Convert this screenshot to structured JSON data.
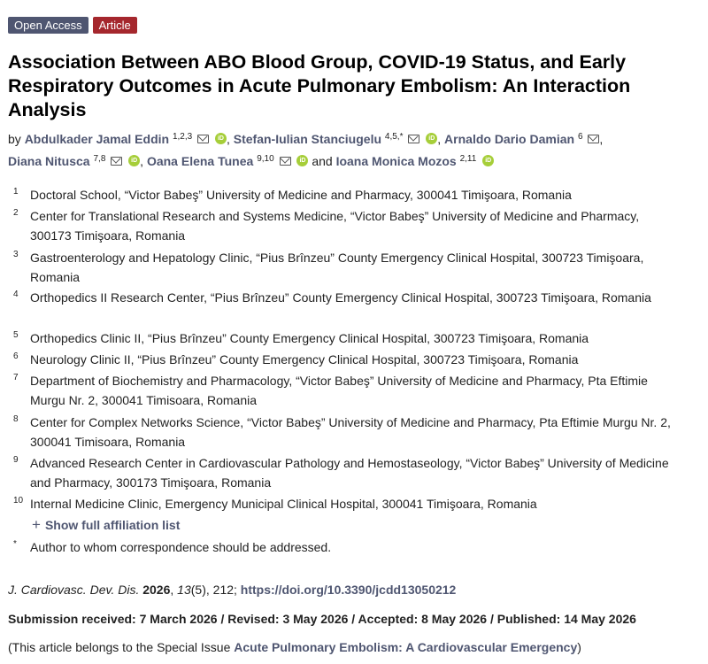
{
  "badges": {
    "open_access": "Open Access",
    "article": "Article"
  },
  "title": "Association Between ABO Blood Group, COVID-19 Status, and Early Respiratory Outcomes in Acute Pulmonary Embolism: An Interaction Analysis",
  "authors": {
    "by": "by",
    "list": [
      {
        "name": "Abdulkader Jamal Eddin",
        "sup": "1,2,3",
        "email": true,
        "orcid": true
      },
      {
        "name": "Stefan-Iulian Stanciugelu",
        "sup": "4,5,*",
        "email": true,
        "orcid": true
      },
      {
        "name": "Arnaldo Dario Damian",
        "sup": "6",
        "email": true,
        "orcid": false
      },
      {
        "name": "Diana Nitusca",
        "sup": "7,8",
        "email": true,
        "orcid": true
      },
      {
        "name": "Oana Elena Tunea",
        "sup": "9,10",
        "email": true,
        "orcid": true
      },
      {
        "name": "Ioana Monica Mozos",
        "sup": "2,11",
        "email": false,
        "orcid": true
      }
    ],
    "separator": ",",
    "and": "and",
    "orcid_label": "iD"
  },
  "affiliations": [
    {
      "num": "1",
      "text": "Doctoral School, “Victor Babeş” University of Medicine and Pharmacy, 300041 Timişoara, Romania"
    },
    {
      "num": "2",
      "text": "Center for Translational Research and Systems Medicine, “Victor Babeş” University of Medicine and Pharmacy, 300173 Timişoara, Romania"
    },
    {
      "num": "3",
      "text": "Gastroenterology and Hepatology Clinic, “Pius Brînzeu” County Emergency Clinical Hospital, 300723 Timişoara, Romania"
    },
    {
      "num": "4",
      "text": "Orthopedics II Research Center, “Pius Brînzeu” County Emergency Clinical Hospital, 300723 Timişoara, Romania"
    },
    {
      "num": "5",
      "text": "Orthopedics Clinic II, “Pius Brînzeu” County Emergency Clinical Hospital, 300723 Timişoara, Romania"
    },
    {
      "num": "6",
      "text": "Neurology Clinic II, “Pius Brînzeu” County Emergency Clinical Hospital, 300723 Timişoara, Romania"
    },
    {
      "num": "7",
      "text": "Department of Biochemistry and Pharmacology, “Victor Babeş” University of Medicine and Pharmacy, Pta Eftimie Murgu Nr. 2, 300041 Timisoara, Romania"
    },
    {
      "num": "8",
      "text": "Center for Complex Networks Science, “Victor Babeş” University of Medicine and Pharmacy, Pta Eftimie Murgu Nr. 2, 300041 Timisoara, Romania"
    },
    {
      "num": "9",
      "text": "Advanced Research Center in Cardiovascular Pathology and Hemostaseology, “Victor Babeş” University of Medicine and Pharmacy, 300173 Timişoara, Romania"
    },
    {
      "num": "10",
      "text": "Internal Medicine Clinic, Emergency Municipal Clinical Hospital, 300041 Timişoara, Romania"
    }
  ],
  "show_full": {
    "icon": "+",
    "label": "Show full affiliation list"
  },
  "correspondence": {
    "marker": "*",
    "text": "Author to whom correspondence should be addressed."
  },
  "citation": {
    "journal": "J. Cardiovasc. Dev. Dis.",
    "year": "2026",
    "volume": "13",
    "issue": "(5)",
    "pages": ", 212;",
    "doi": "https://doi.org/10.3390/jcdd13050212"
  },
  "dates": "Submission received: 7 March 2026 / Revised: 3 May 2026 / Accepted: 8 May 2026 / Published: 14 May 2026",
  "special_issue": {
    "prefix": "(This article belongs to the Special Issue ",
    "link": "Acute Pulmonary Embolism: A Cardiovascular Emergency",
    "suffix": ")"
  },
  "colors": {
    "link": "#4f5671",
    "badge_open_access": "#4f5671",
    "badge_article": "#a5272d",
    "orcid": "#a6ce39"
  }
}
